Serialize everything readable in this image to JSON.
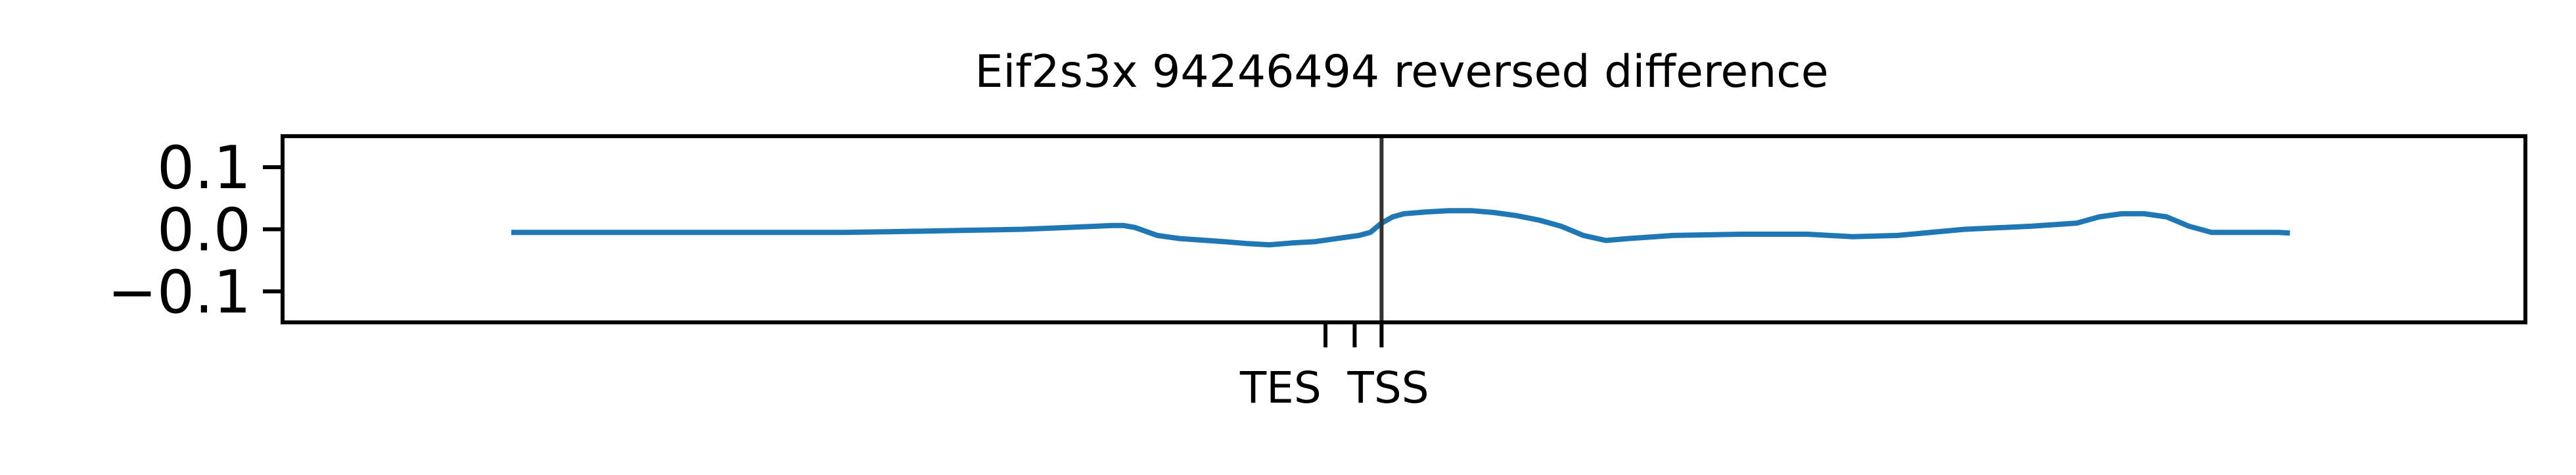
{
  "chart_data": {
    "type": "line",
    "title": "Eif2s3x 94246494 reversed difference",
    "xlabel": "",
    "ylabel": "",
    "xlim": [
      0,
      100
    ],
    "ylim": [
      -0.15,
      0.15
    ],
    "grid": false,
    "legend": "none",
    "yticks": [
      {
        "value": 0.1,
        "label": "0.1"
      },
      {
        "value": 0.0,
        "label": "0.0"
      },
      {
        "value": -0.1,
        "label": "−0.1"
      }
    ],
    "xticks": [
      {
        "value": 46.5,
        "label": ""
      },
      {
        "value": 47.8,
        "label": ""
      },
      {
        "value": 49.0,
        "label": ""
      }
    ],
    "xtick_labels": [
      {
        "value": 44.5,
        "label": "TES"
      },
      {
        "value": 49.3,
        "label": "TSS"
      }
    ],
    "vline": {
      "x": 49.0,
      "color": "#333333"
    },
    "series": [
      {
        "color": "#1f77b4",
        "x": [
          10.2,
          15,
          20,
          25,
          27,
          30,
          33,
          35,
          37,
          37.5,
          38,
          39,
          40,
          42,
          43,
          44,
          45,
          46,
          47,
          48,
          48.5,
          49,
          49.5,
          50,
          51,
          52,
          53,
          54,
          55,
          56,
          57,
          58,
          59,
          60,
          62,
          65,
          68,
          70,
          72,
          75,
          78,
          80,
          81,
          82,
          83,
          84,
          85,
          86,
          87,
          88,
          89,
          89.5
        ],
        "y": [
          -0.005,
          -0.005,
          -0.005,
          -0.005,
          -0.004,
          -0.002,
          0.0,
          0.003,
          0.006,
          0.006,
          0.003,
          -0.01,
          -0.015,
          -0.02,
          -0.023,
          -0.025,
          -0.022,
          -0.02,
          -0.015,
          -0.01,
          -0.005,
          0.01,
          0.02,
          0.025,
          0.028,
          0.03,
          0.03,
          0.027,
          0.022,
          0.015,
          0.005,
          -0.01,
          -0.018,
          -0.015,
          -0.01,
          -0.008,
          -0.008,
          -0.012,
          -0.01,
          0.0,
          0.005,
          0.01,
          0.02,
          0.025,
          0.025,
          0.02,
          0.005,
          -0.005,
          -0.005,
          -0.005,
          -0.005,
          -0.006
        ]
      }
    ]
  }
}
